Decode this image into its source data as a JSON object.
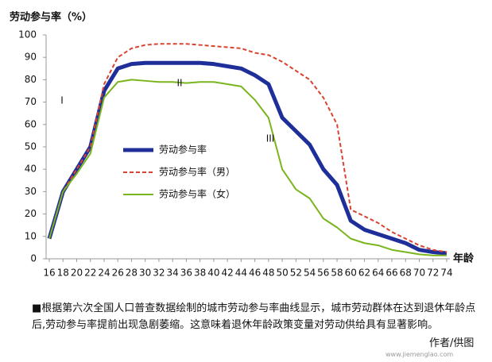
{
  "chart_data": {
    "type": "line",
    "y_title": "劳动参与率（%）",
    "x_title": "年龄",
    "x": [
      16,
      18,
      20,
      22,
      24,
      26,
      28,
      30,
      32,
      34,
      36,
      38,
      40,
      42,
      44,
      46,
      48,
      50,
      52,
      54,
      56,
      58,
      60,
      62,
      64,
      66,
      68,
      70,
      72,
      74
    ],
    "xlim": [
      16,
      74
    ],
    "xticks": [
      16,
      18,
      20,
      22,
      24,
      26,
      28,
      30,
      32,
      34,
      36,
      38,
      40,
      42,
      44,
      46,
      48,
      50,
      52,
      54,
      56,
      58,
      60,
      62,
      64,
      66,
      68,
      70,
      72,
      74
    ],
    "ylim": [
      0,
      100
    ],
    "yticks": [
      0,
      10,
      20,
      30,
      40,
      50,
      60,
      70,
      80,
      90,
      100
    ],
    "grid": false,
    "legend": "center-left",
    "series": [
      {
        "name": "劳动参与率",
        "color": "#1f2f9a",
        "dash": "solid",
        "width": 5,
        "values": [
          9,
          30,
          40,
          50,
          75,
          85,
          87,
          87.5,
          87.5,
          87.5,
          87.5,
          87.5,
          87,
          86,
          85,
          82,
          78,
          63,
          57,
          51,
          40,
          33,
          17,
          13,
          11,
          9,
          7,
          4,
          3,
          2.5
        ]
      },
      {
        "name": "劳动参与率（男）",
        "color": "#d9432f",
        "dash": "dashed",
        "width": 2,
        "values": [
          9,
          30,
          40,
          50,
          78,
          90,
          94,
          95.5,
          96,
          96,
          96,
          95.5,
          95,
          94.5,
          94,
          92,
          91,
          88,
          84,
          80,
          72,
          60,
          22,
          19,
          16,
          12,
          9,
          6,
          4,
          3
        ]
      },
      {
        "name": "劳动参与率（女）",
        "color": "#7ab51d",
        "dash": "solid",
        "width": 2,
        "values": [
          9,
          30,
          38,
          47,
          72,
          79,
          80,
          79.5,
          79,
          79,
          78.5,
          79,
          79,
          78,
          77,
          71,
          63,
          40,
          31,
          27,
          18,
          14,
          9,
          7,
          6,
          4,
          3,
          2,
          1.5,
          1.5
        ]
      }
    ],
    "annotations": [
      "I",
      "II",
      "III"
    ]
  },
  "caption": "■根据第六次全国人口普查数据绘制的城市劳动参与率曲线显示，城市劳动群体在达到退休年龄点后,劳动参与率提前出现急剧萎缩。这意味着退休年龄政策变量对劳动供给具有显著影响。",
  "credit": "作者/供图",
  "watermark": "www.jiemenglao.com"
}
